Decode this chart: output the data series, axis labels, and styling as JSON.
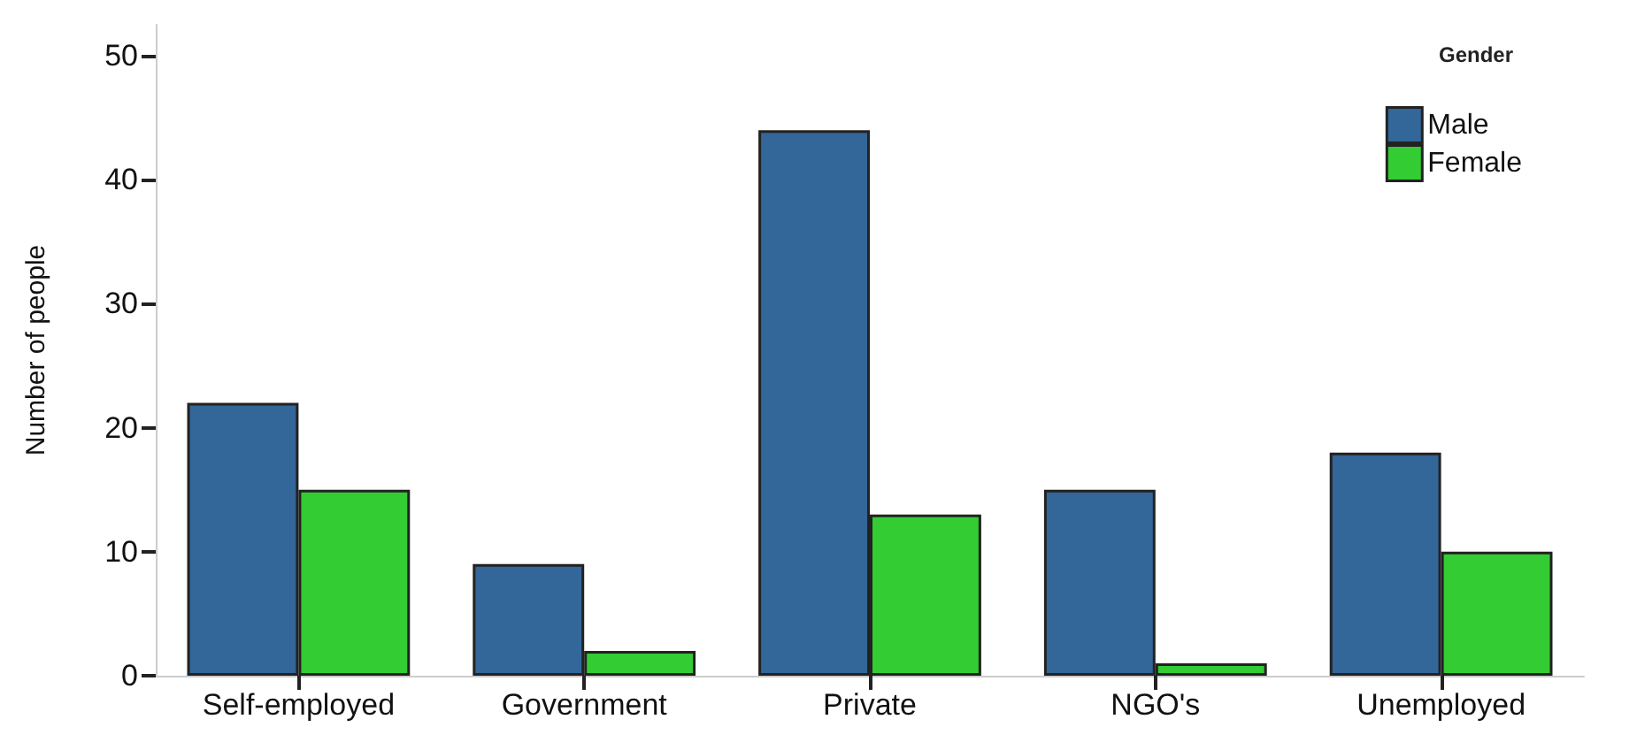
{
  "chart_data": {
    "type": "bar",
    "ylabel": "Number of people",
    "legend_title": "Gender",
    "categories": [
      "Self-employed",
      "Government",
      "Private",
      "NGO's",
      "Unemployed"
    ],
    "series": [
      {
        "name": "Male",
        "color": "#336699",
        "values": [
          22,
          9,
          44,
          15,
          18
        ]
      },
      {
        "name": "Female",
        "color": "#33cc33",
        "values": [
          15,
          2,
          13,
          1,
          10
        ]
      }
    ],
    "ylim": [
      0,
      52.5
    ],
    "yticks": [
      0,
      10,
      20,
      30,
      40,
      50
    ],
    "grid": false,
    "legend": "top right"
  }
}
